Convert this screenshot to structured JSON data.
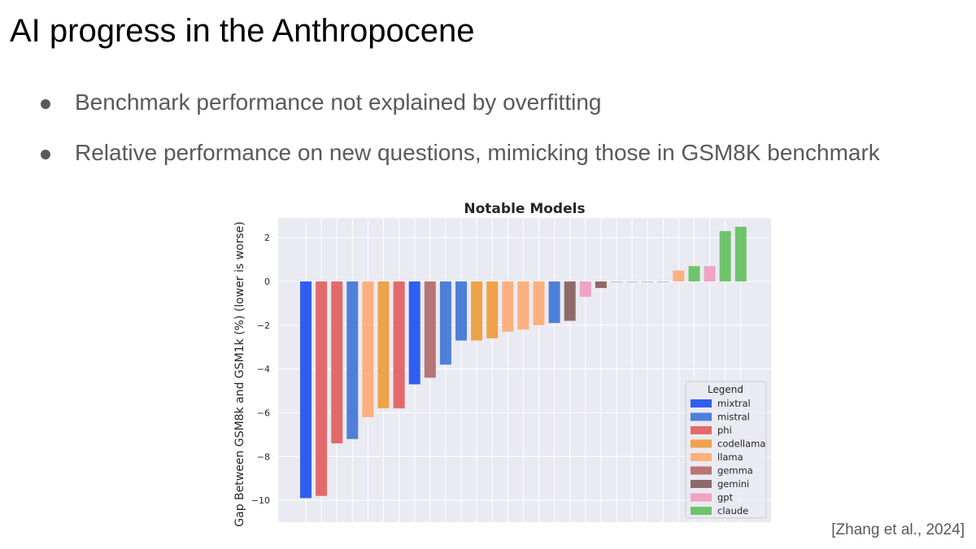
{
  "slide": {
    "title": "AI progress in the Anthropocene",
    "bullets": [
      "Benchmark performance not explained by overfitting",
      "Relative performance on new questions, mimicking those in GSM8K benchmark"
    ],
    "citation": "[Zhang et al., 2024]"
  },
  "colors": {
    "plot_bg": "#eaeaf2",
    "grid": "#ffffff",
    "mixtral": "#2f5ef0",
    "mistral": "#4e7fd9",
    "phi": "#e36a6a",
    "codellama": "#eea34a",
    "llama": "#fdb07f",
    "gemma": "#b97474",
    "gemini": "#8f6a68",
    "gpt": "#f0a3c4",
    "claude": "#6ec46b"
  },
  "chart_data": {
    "type": "bar",
    "title": "Notable Models",
    "xlabel": "",
    "ylabel": "Gap Between GSM8k and GSM1k (%) (lower is worse)",
    "ylim": [
      -11,
      2.9
    ],
    "yticks": [
      -10,
      -8,
      -6,
      -4,
      -2,
      0,
      2
    ],
    "ytick_labels": [
      "−10",
      "−8",
      "−6",
      "−4",
      "−2",
      "0",
      "2"
    ],
    "grid": true,
    "legend_position": "bottom-right",
    "legend_title": "Legend",
    "legend": [
      "mixtral",
      "mistral",
      "phi",
      "codellama",
      "llama",
      "gemma",
      "gemini",
      "gpt",
      "claude"
    ],
    "bars": [
      {
        "family": "mixtral",
        "value": -9.9
      },
      {
        "family": "phi",
        "value": -9.8
      },
      {
        "family": "phi",
        "value": -7.4
      },
      {
        "family": "mistral",
        "value": -7.2
      },
      {
        "family": "llama",
        "value": -6.2
      },
      {
        "family": "codellama",
        "value": -5.8
      },
      {
        "family": "phi",
        "value": -5.8
      },
      {
        "family": "mixtral",
        "value": -4.7
      },
      {
        "family": "gemma",
        "value": -4.4
      },
      {
        "family": "mistral",
        "value": -3.8
      },
      {
        "family": "mistral",
        "value": -2.7
      },
      {
        "family": "codellama",
        "value": -2.7
      },
      {
        "family": "codellama",
        "value": -2.6
      },
      {
        "family": "llama",
        "value": -2.3
      },
      {
        "family": "llama",
        "value": -2.2
      },
      {
        "family": "llama",
        "value": -2.0
      },
      {
        "family": "mistral",
        "value": -1.9
      },
      {
        "family": "gemini",
        "value": -1.8
      },
      {
        "family": "gpt",
        "value": -0.7
      },
      {
        "family": "gemini",
        "value": -0.3
      },
      {
        "family": "claude",
        "value": 0.0
      },
      {
        "family": "claude",
        "value": 0.0
      },
      {
        "family": "claude",
        "value": 0.0
      },
      {
        "family": "claude",
        "value": 0.0
      },
      {
        "family": "llama",
        "value": 0.5
      },
      {
        "family": "claude",
        "value": 0.7
      },
      {
        "family": "gpt",
        "value": 0.7
      },
      {
        "family": "claude",
        "value": 2.3
      },
      {
        "family": "claude",
        "value": 2.5
      }
    ]
  }
}
